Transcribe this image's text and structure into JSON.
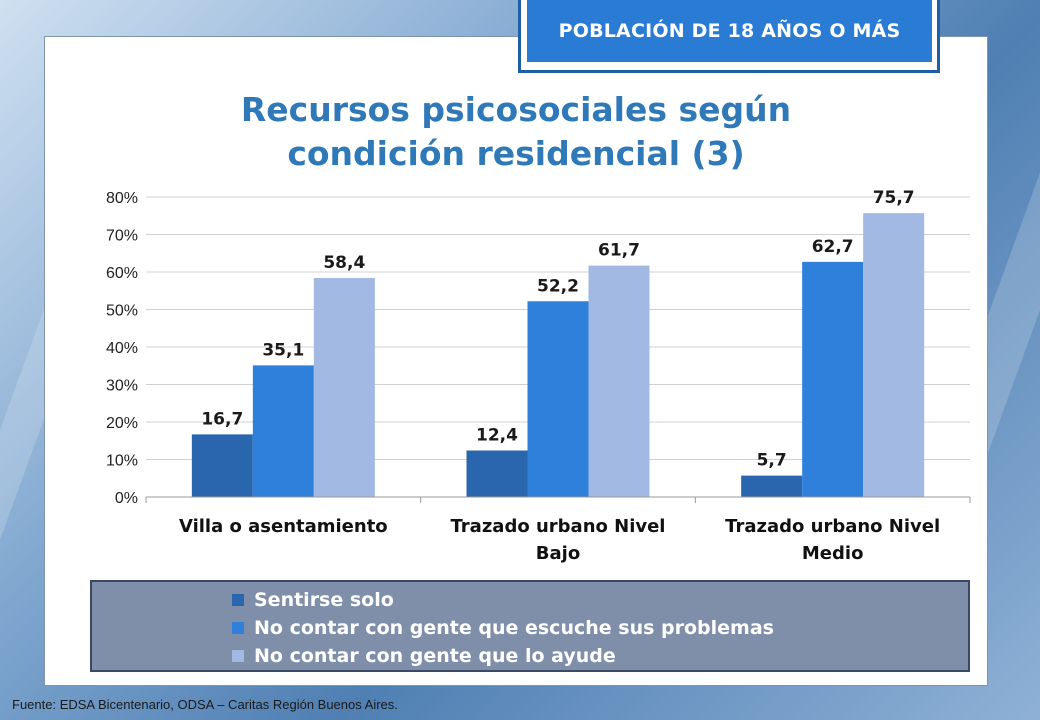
{
  "badge": "POBLACIÓN DE 18 AÑOS O MÁS",
  "source": "Fuente:  EDSA Bicentenario,  ODSA – Caritas Región Buenos Aires.",
  "chart_data": {
    "type": "bar",
    "title": "Recursos psicosociales según condición residencial (3)",
    "categories": [
      "Villa o asentamiento",
      "Trazado urbano Nivel Bajo",
      "Trazado urbano Nivel Medio"
    ],
    "series": [
      {
        "name": "Sentirse solo",
        "color": "#2a66ad",
        "values": [
          16.7,
          12.4,
          5.7
        ],
        "labels": [
          "16,7",
          "12,4",
          "5,7"
        ]
      },
      {
        "name": "No contar con gente que escuche sus problemas",
        "color": "#2f80db",
        "values": [
          35.1,
          52.2,
          62.7
        ],
        "labels": [
          "35,1",
          "52,2",
          "62,7"
        ]
      },
      {
        "name": "No contar con gente que lo ayude",
        "color": "#a2b9e3",
        "values": [
          58.4,
          61.7,
          75.7
        ],
        "labels": [
          "58,4",
          "61,7",
          "75,7"
        ]
      }
    ],
    "ylim": [
      0,
      80
    ],
    "yticks": [
      "0%",
      "10%",
      "20%",
      "30%",
      "40%",
      "50%",
      "60%",
      "70%",
      "80%"
    ],
    "xlabel": "",
    "ylabel": "",
    "grid": true,
    "legend_position": "bottom"
  }
}
